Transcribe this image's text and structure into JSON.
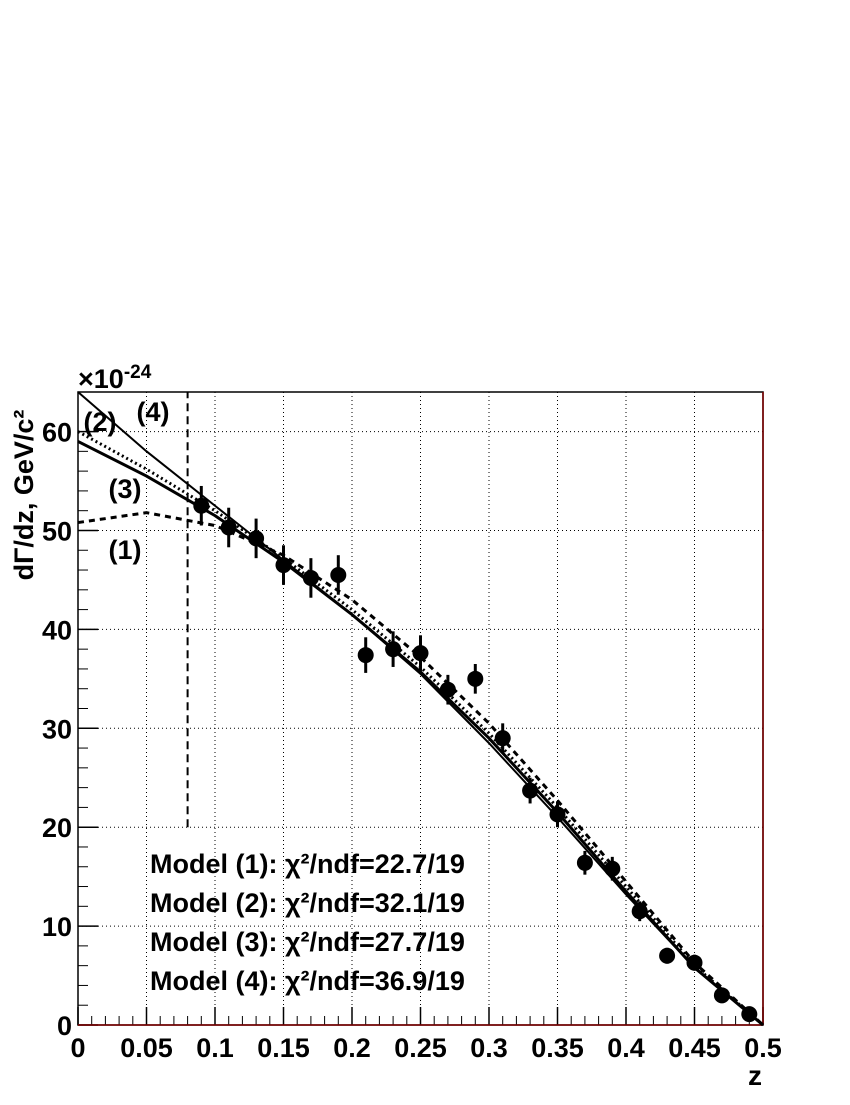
{
  "chart_data": {
    "type": "line",
    "x_label": "z",
    "y_label": "dΓ/dz, GeV/c²",
    "y_multiplier": "×10",
    "y_exponent": "-24",
    "xlim": [
      0,
      0.5
    ],
    "ylim": [
      0,
      64
    ],
    "xticks": [
      0,
      0.05,
      0.1,
      0.15,
      0.2,
      0.25,
      0.3,
      0.35,
      0.4,
      0.45,
      0.5
    ],
    "yticks": [
      0,
      10,
      20,
      30,
      40,
      50,
      60
    ],
    "grid": true,
    "cut_line": {
      "x": 0.08,
      "ymin": 20
    },
    "points": {
      "color": "#000000",
      "x": [
        0.09,
        0.11,
        0.13,
        0.15,
        0.17,
        0.19,
        0.21,
        0.23,
        0.25,
        0.27,
        0.29,
        0.31,
        0.33,
        0.35,
        0.37,
        0.39,
        0.41,
        0.43,
        0.45,
        0.47,
        0.49
      ],
      "values": [
        52.5,
        50.3,
        49.2,
        46.5,
        45.2,
        45.5,
        37.4,
        38.0,
        37.6,
        33.9,
        35.0,
        29.0,
        23.7,
        21.3,
        16.4,
        15.8,
        11.5,
        7.0,
        6.3,
        3.0,
        1.1
      ],
      "errors": [
        2.0,
        2.0,
        2.0,
        2.0,
        2.0,
        2.0,
        1.8,
        1.8,
        1.8,
        1.5,
        1.5,
        1.5,
        1.3,
        1.3,
        1.2,
        1.2,
        1.0,
        0.8,
        0.8,
        0.7,
        0.5
      ]
    },
    "series": [
      {
        "name": "(1)",
        "color": "#000000",
        "style": "dashed",
        "x": [
          0,
          0.05,
          0.1,
          0.15,
          0.2,
          0.25,
          0.3,
          0.35,
          0.4,
          0.45,
          0.5
        ],
        "values": [
          50.8,
          51.8,
          50.5,
          47.5,
          43.0,
          37.2,
          30.5,
          22.7,
          14.5,
          6.3,
          0
        ]
      },
      {
        "name": "(2)",
        "color": "#000000",
        "style": "dotted",
        "x": [
          0,
          0.05,
          0.1,
          0.15,
          0.2,
          0.25,
          0.3,
          0.35,
          0.4,
          0.45,
          0.5
        ],
        "values": [
          60.0,
          56.2,
          52.0,
          47.2,
          42.0,
          36.2,
          29.5,
          22.0,
          14.0,
          6.0,
          0
        ]
      },
      {
        "name": "(3)",
        "color": "#000000",
        "style": "solid",
        "x": [
          0,
          0.05,
          0.1,
          0.15,
          0.2,
          0.25,
          0.3,
          0.35,
          0.4,
          0.45,
          0.5
        ],
        "values": [
          59.0,
          55.5,
          51.5,
          46.8,
          41.5,
          35.7,
          29.0,
          21.5,
          13.5,
          5.8,
          0
        ]
      },
      {
        "name": "(4)",
        "color": "#000000",
        "style": "thin",
        "x": [
          0,
          0.05,
          0.1,
          0.15,
          0.2,
          0.25,
          0.3,
          0.35,
          0.4,
          0.45,
          0.5
        ],
        "values": [
          64.0,
          58.0,
          52.5,
          47.0,
          41.5,
          35.5,
          28.5,
          21.0,
          13.2,
          5.8,
          0
        ]
      }
    ],
    "annotations": [
      "Model (1): χ²/ndf=22.7/19",
      "Model (2): χ²/ndf=32.1/19",
      "Model (3): χ²/ndf=27.7/19",
      "Model (4): χ²/ndf=36.9/19"
    ]
  }
}
